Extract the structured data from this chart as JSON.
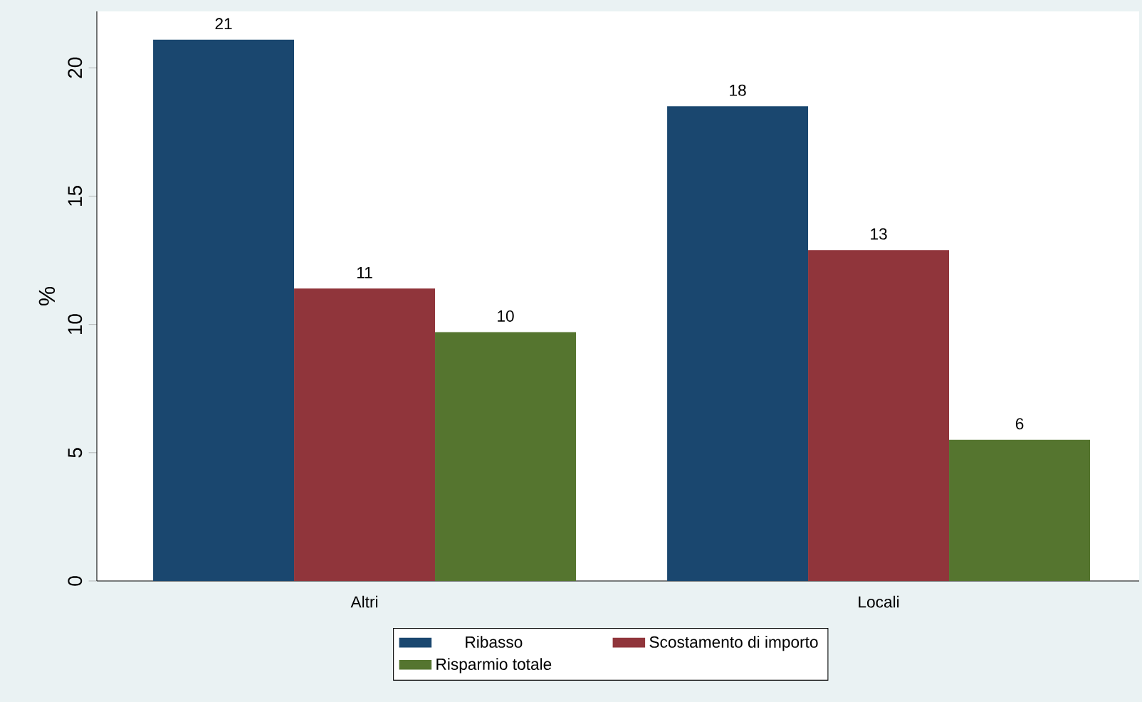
{
  "chart_data": {
    "type": "bar",
    "ylabel": "%",
    "categories": [
      "Altri",
      "Locali"
    ],
    "series": [
      {
        "name": "Ribasso",
        "color": "#1a476f",
        "values": [
          21.1,
          18.5
        ],
        "value_labels": [
          "21",
          "18"
        ]
      },
      {
        "name": "Scostamento di importo",
        "color": "#90353b",
        "values": [
          11.4,
          12.9
        ],
        "value_labels": [
          "11",
          "13"
        ]
      },
      {
        "name": "Risparmio totale",
        "color": "#55752f",
        "values": [
          9.7,
          5.5
        ],
        "value_labels": [
          "10",
          "6"
        ]
      }
    ],
    "ylim": [
      0,
      22.2
    ],
    "yticks": [
      0,
      5,
      10,
      15,
      20
    ],
    "legend": "bottom"
  }
}
